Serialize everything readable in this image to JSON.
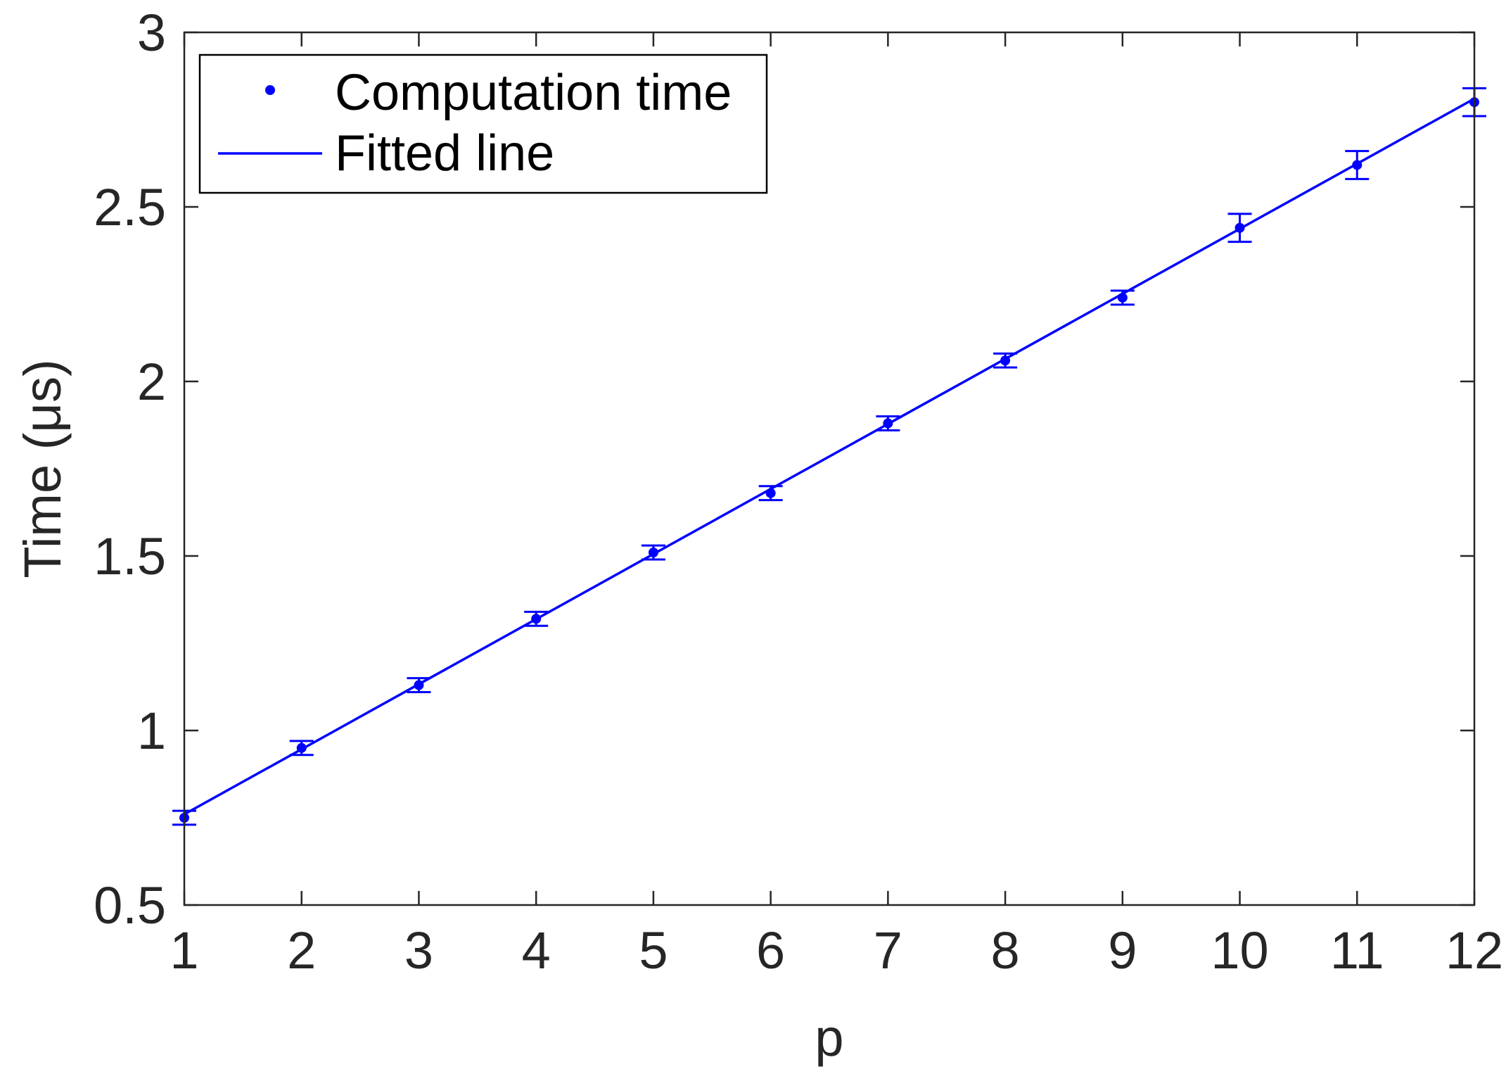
{
  "chart_data": {
    "type": "scatter",
    "xlabel": "p",
    "ylabel": "Time (μs)",
    "xlim": [
      1,
      12
    ],
    "ylim": [
      0.5,
      3
    ],
    "xticks": [
      "1",
      "2",
      "3",
      "4",
      "5",
      "6",
      "7",
      "8",
      "9",
      "10",
      "11",
      "12"
    ],
    "yticks": [
      "0.5",
      "1",
      "1.5",
      "2",
      "2.5",
      "3"
    ],
    "grid": false,
    "legend_position": "top-left",
    "colors": {
      "series": "#0000ff",
      "axis": "#262626"
    },
    "series": [
      {
        "name": "Computation time",
        "style": "dots-with-error-bars",
        "x": [
          1,
          2,
          3,
          4,
          5,
          6,
          7,
          8,
          9,
          10,
          11,
          12
        ],
        "y": [
          0.75,
          0.95,
          1.13,
          1.32,
          1.51,
          1.68,
          1.88,
          2.06,
          2.24,
          2.44,
          2.62,
          2.8
        ],
        "error": [
          0.02,
          0.02,
          0.02,
          0.02,
          0.02,
          0.02,
          0.02,
          0.02,
          0.02,
          0.04,
          0.04,
          0.04
        ]
      },
      {
        "name": "Fitted line",
        "style": "line",
        "x": [
          1,
          12
        ],
        "y": [
          0.76,
          2.81
        ]
      }
    ]
  }
}
